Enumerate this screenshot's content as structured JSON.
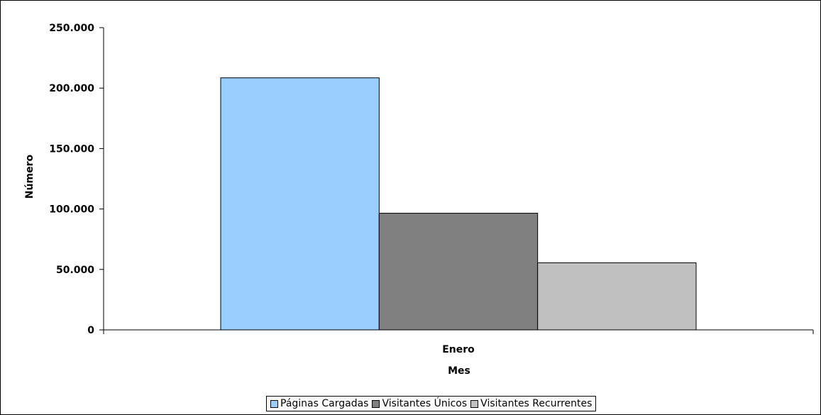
{
  "chart_data": {
    "type": "bar",
    "title": "",
    "xlabel": "Mes",
    "ylabel": "Número",
    "categories": [
      "Enero"
    ],
    "ylim": [
      0,
      250000
    ],
    "yticks": [
      0,
      50000,
      100000,
      150000,
      200000,
      250000
    ],
    "ytick_labels": [
      "0",
      "50.000",
      "100.000",
      "150.000",
      "200.000",
      "250.000"
    ],
    "grid": false,
    "legend_position": "bottom",
    "series": [
      {
        "name": "Páginas Cargadas",
        "values": [
          208500
        ],
        "color": "#99ccff"
      },
      {
        "name": "Visitantes Únicos",
        "values": [
          96500
        ],
        "color": "#808080"
      },
      {
        "name": "Visitantes Recurrentes",
        "values": [
          55500
        ],
        "color": "#c0c0c0"
      }
    ]
  }
}
